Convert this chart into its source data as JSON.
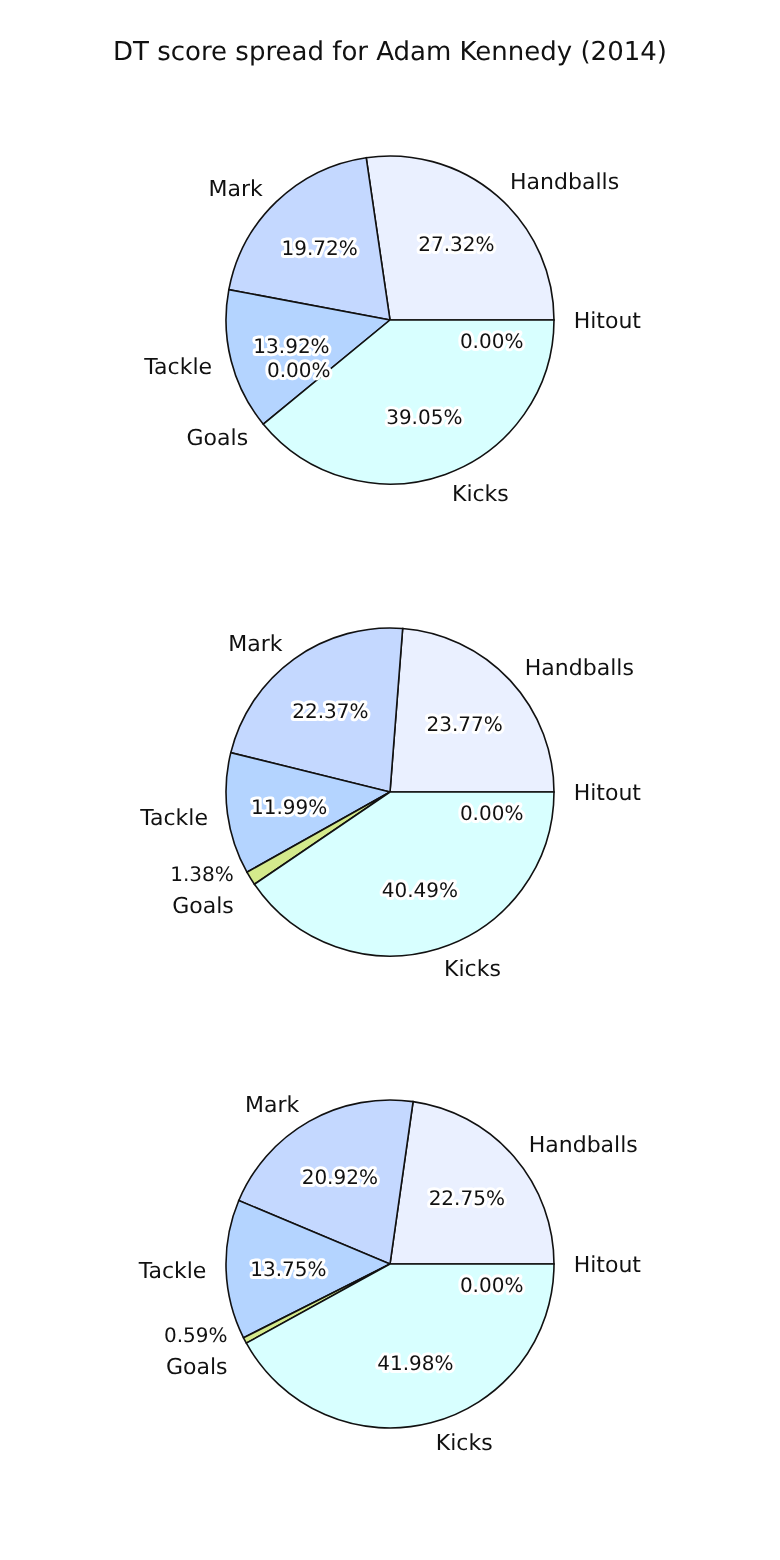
{
  "chart_data": [
    {
      "type": "pie",
      "title": "DT score spread for Adam Kennedy (2014)",
      "categories": [
        "Hitout",
        "Handballs",
        "Mark",
        "Tackle",
        "Goals",
        "Kicks"
      ],
      "colors": [
        "#e8eeff",
        "#eaf0ff",
        "#c4d8ff",
        "#b4d4ff",
        "#d4ea8c",
        "#d8ffff"
      ],
      "values": [
        0,
        27.32,
        19.72,
        13.92,
        0,
        39.05
      ],
      "value_labels": [
        "0.00%",
        "27.32%",
        "19.72%",
        "13.92%",
        "0.00%",
        "39.05%"
      ]
    },
    {
      "type": "pie",
      "categories": [
        "Hitout",
        "Handballs",
        "Mark",
        "Tackle",
        "Goals",
        "Kicks"
      ],
      "colors": [
        "#e8eeff",
        "#eaf0ff",
        "#c4d8ff",
        "#b4d4ff",
        "#d4ea8c",
        "#d8ffff"
      ],
      "values": [
        0,
        23.77,
        22.37,
        11.99,
        1.38,
        40.49
      ],
      "value_labels": [
        "0.00%",
        "23.77%",
        "22.37%",
        "11.99%",
        "1.38%",
        "40.49%"
      ]
    },
    {
      "type": "pie",
      "categories": [
        "Hitout",
        "Handballs",
        "Mark",
        "Tackle",
        "Goals",
        "Kicks"
      ],
      "colors": [
        "#e8eeff",
        "#eaf0ff",
        "#c4d8ff",
        "#b4d4ff",
        "#d4ea8c",
        "#d8ffff"
      ],
      "values": [
        0,
        22.75,
        20.92,
        13.75,
        0.59,
        41.98
      ],
      "value_labels": [
        "0.00%",
        "22.75%",
        "20.92%",
        "13.75%",
        "0.59%",
        "41.98%"
      ]
    }
  ]
}
